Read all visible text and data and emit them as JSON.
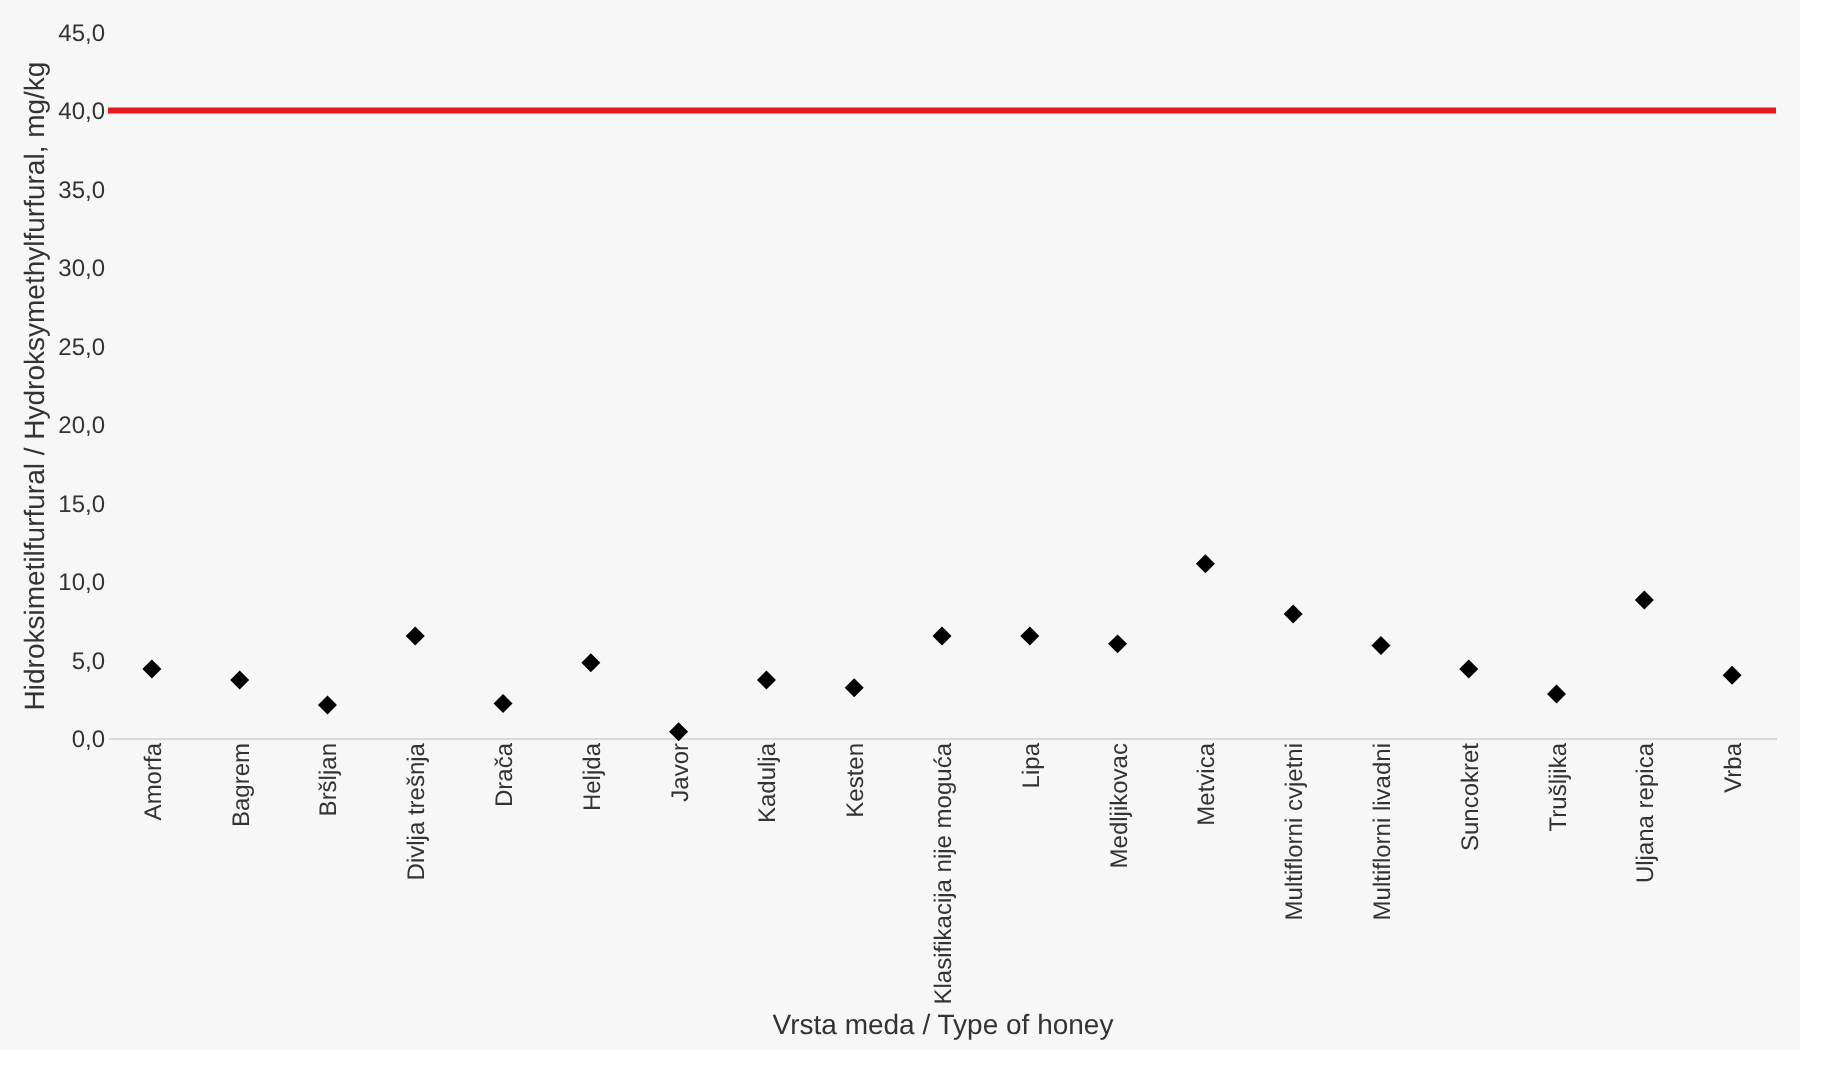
{
  "chart_data": {
    "type": "scatter",
    "xlabel": "Vrsta meda / Type of honey",
    "ylabel": "Hidroksimetilfurfural / Hydroksymethylfurfural, mg/kg",
    "categories": [
      "Amorfa",
      "Bagrem",
      "Bršljan",
      "Divlja trešnja",
      "Drača",
      "Heljda",
      "Javor",
      "Kadulja",
      "Kesten",
      "Klasifikacija nije moguća",
      "Lipa",
      "Medljikovac",
      "Metvica",
      "Multiflorni cvjetni",
      "Multiflorni livadni",
      "Suncokret",
      "Trušljika",
      "Uljana repica",
      "Vrba"
    ],
    "series": [
      {
        "color": "#000000",
        "values": [
          4.4,
          3.7,
          2.1,
          6.5,
          2.2,
          4.8,
          0.4,
          3.7,
          3.2,
          6.5,
          6.5,
          6.0,
          11.1,
          7.9,
          5.9,
          4.4,
          2.8,
          8.8,
          4.0
        ]
      }
    ],
    "marker": "diamond",
    "ylim": [
      0,
      45
    ],
    "yticks": [
      {
        "value": 0,
        "label": "0,0"
      },
      {
        "value": 5,
        "label": "5,0"
      },
      {
        "value": 10,
        "label": "10,0"
      },
      {
        "value": 15,
        "label": "15,0"
      },
      {
        "value": 20,
        "label": "20,0"
      },
      {
        "value": 25,
        "label": "25,0"
      },
      {
        "value": 30,
        "label": "30,0"
      },
      {
        "value": 35,
        "label": "35,0"
      },
      {
        "value": 40,
        "label": "40,0"
      },
      {
        "value": 45,
        "label": "45,0"
      }
    ],
    "ref_lines": [
      {
        "axis": "y",
        "value": 40,
        "color": "#e41a1c",
        "line_style": "solid"
      }
    ],
    "grid": false
  }
}
